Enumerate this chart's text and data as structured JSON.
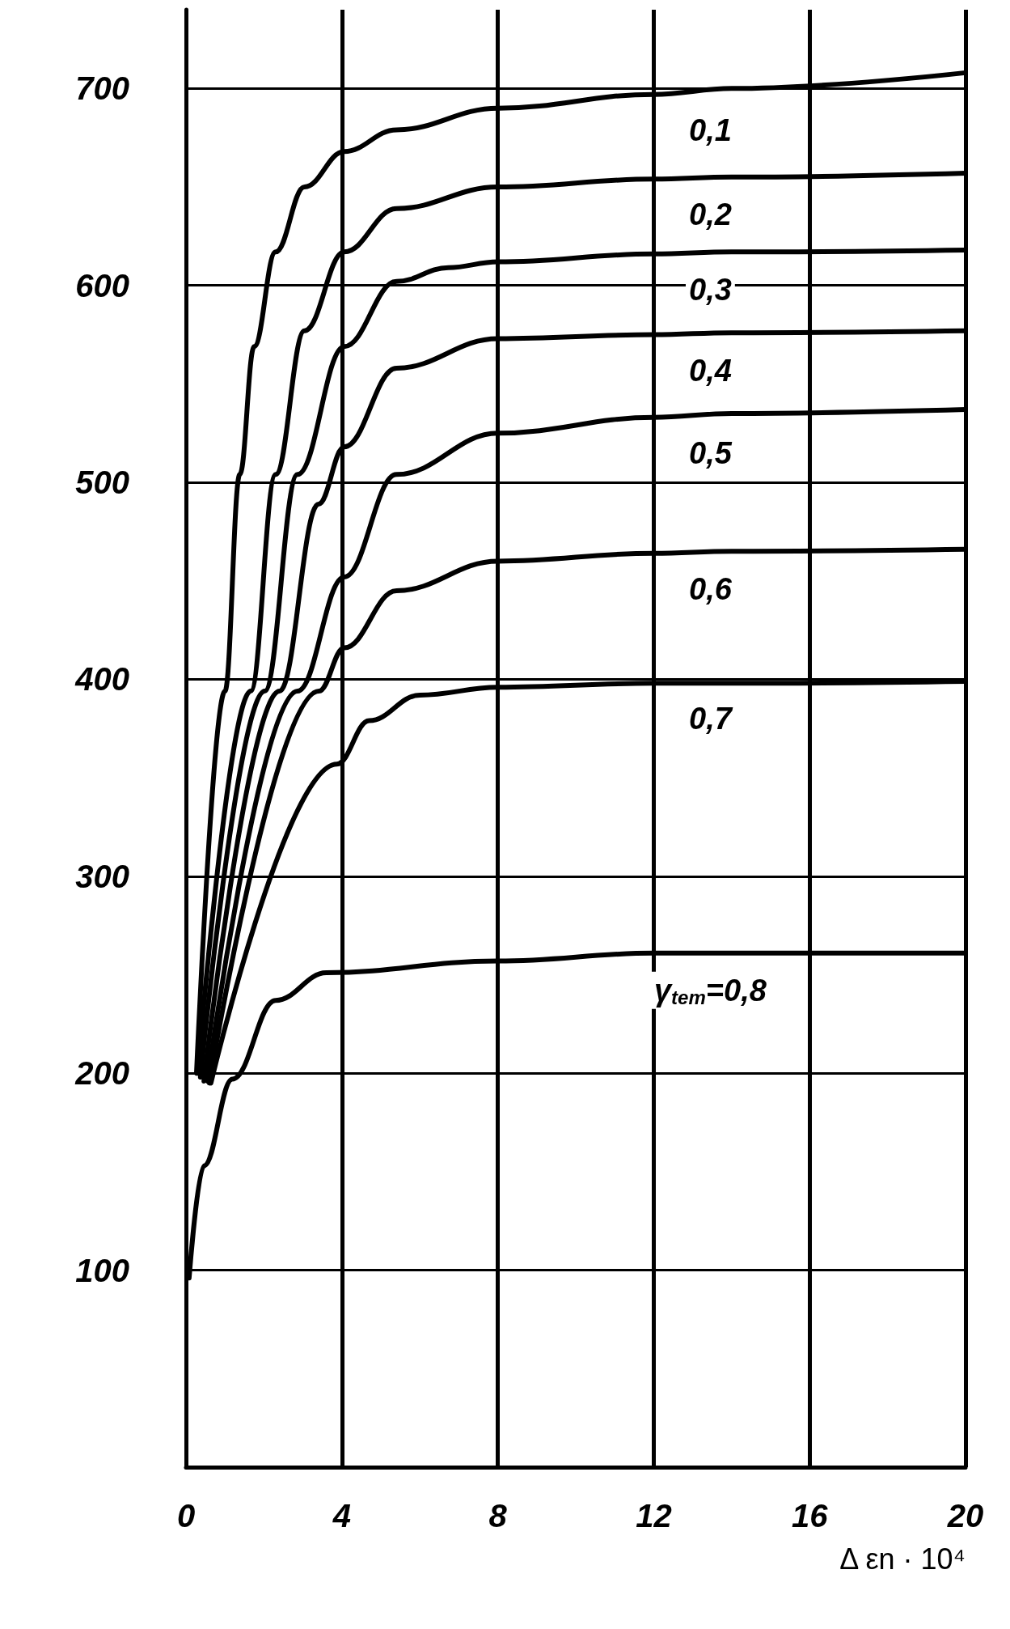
{
  "chart_data": {
    "type": "line",
    "xlabel": "Δ εn · 10⁴",
    "xlim": [
      0,
      20
    ],
    "xticks": [
      0,
      4,
      8,
      12,
      16,
      20
    ],
    "ylim": [
      0,
      740
    ],
    "yticks": [
      100,
      200,
      300,
      400,
      500,
      600,
      700
    ],
    "grid": true,
    "legend": false,
    "marker": "none",
    "line_style": "solid",
    "series": [
      {
        "name": "0,1",
        "color": "#000000",
        "x": [
          0.27,
          1.0,
          1.38,
          1.75,
          2.3,
          3.04,
          4.06,
          5.4,
          8.0,
          12,
          14,
          20
        ],
        "values": [
          200,
          394,
          504,
          569,
          617,
          650,
          668,
          679,
          690,
          697,
          700,
          708
        ]
      },
      {
        "name": "0,2",
        "color": "#000000",
        "x": [
          0.3,
          1.66,
          2.3,
          3.04,
          4.06,
          5.4,
          8.0,
          12,
          14,
          20
        ],
        "values": [
          200,
          394,
          504,
          577,
          617,
          639,
          650,
          654,
          655,
          657
        ]
      },
      {
        "name": "0,3",
        "color": "#000000",
        "x": [
          0.37,
          2.02,
          2.86,
          4.06,
          5.4,
          6.73,
          8.0,
          12,
          14,
          20
        ],
        "values": [
          198,
          394,
          504,
          569,
          602,
          609,
          612,
          616,
          617,
          618
        ]
      },
      {
        "name": "0,4",
        "color": "#000000",
        "x": [
          0.46,
          2.4,
          3.4,
          4.06,
          5.4,
          8.0,
          12,
          14,
          20
        ],
        "values": [
          196,
          394,
          489,
          518,
          558,
          573,
          575,
          576,
          577
        ]
      },
      {
        "name": "0,5",
        "color": "#000000",
        "x": [
          0.55,
          2.86,
          4.06,
          5.4,
          8.0,
          12,
          14,
          20
        ],
        "values": [
          196,
          394,
          452,
          504,
          525,
          533,
          535,
          537
        ]
      },
      {
        "name": "0,6",
        "color": "#000000",
        "x": [
          0.6,
          3.41,
          4.06,
          5.4,
          8.0,
          12,
          14,
          20
        ],
        "values": [
          195,
          394,
          416,
          445,
          460,
          464,
          465,
          466
        ]
      },
      {
        "name": "0,7",
        "color": "#000000",
        "x": [
          0.64,
          3.87,
          4.7,
          6.0,
          8.0,
          12,
          14,
          20
        ],
        "values": [
          195,
          357,
          379,
          392,
          396,
          398,
          398,
          399
        ]
      },
      {
        "name": "γ$_{tem}$=0,8",
        "color": "#000000",
        "x": [
          0.08,
          0.46,
          1.19,
          2.3,
          3.6,
          8.0,
          12,
          14,
          20
        ],
        "values": [
          96,
          153,
          197,
          237,
          251,
          257,
          261,
          261,
          261
        ]
      }
    ]
  }
}
